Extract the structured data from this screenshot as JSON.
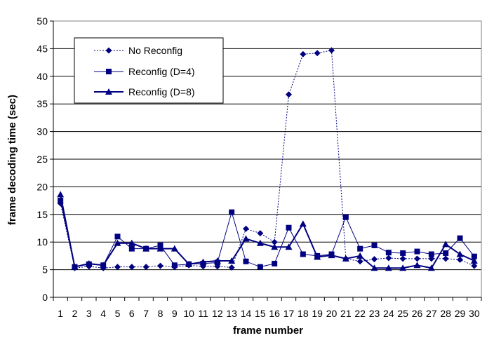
{
  "chart_data": {
    "type": "line",
    "title": "",
    "xlabel": "frame number",
    "ylabel": "frame decoding time (sec)",
    "x": [
      1,
      2,
      3,
      4,
      5,
      6,
      7,
      8,
      9,
      10,
      11,
      12,
      13,
      14,
      15,
      16,
      17,
      18,
      19,
      20,
      21,
      22,
      23,
      24,
      25,
      26,
      27,
      28,
      29,
      30
    ],
    "ylim": [
      0,
      50
    ],
    "yticks": [
      0,
      5,
      10,
      15,
      20,
      25,
      30,
      35,
      40,
      45,
      50
    ],
    "grid": "horizontal",
    "legend_position": "top-left",
    "series": [
      {
        "name": "No Reconfig",
        "style": "dotted",
        "marker": "diamond",
        "color": "#000080",
        "values": [
          17.0,
          5.3,
          5.6,
          5.3,
          5.5,
          5.5,
          5.5,
          5.7,
          5.5,
          5.8,
          5.6,
          5.6,
          5.4,
          12.4,
          11.6,
          10.0,
          36.7,
          44.0,
          44.2,
          44.7,
          7.0,
          6.5,
          6.9,
          7.1,
          7.0,
          7.0,
          7.0,
          7.0,
          6.8,
          5.7
        ]
      },
      {
        "name": "Reconfig (D=4)",
        "style": "solid",
        "marker": "square",
        "color": "#000080",
        "values": [
          17.5,
          5.5,
          6.0,
          5.8,
          11.0,
          8.8,
          8.8,
          9.4,
          5.8,
          6.0,
          6.1,
          6.3,
          15.4,
          6.5,
          5.5,
          6.1,
          12.6,
          7.8,
          7.5,
          7.8,
          14.5,
          8.8,
          9.4,
          8.1,
          8.0,
          8.3,
          7.8,
          8.0,
          10.7,
          7.4
        ]
      },
      {
        "name": "Reconfig (D=8)",
        "style": "solid-bold",
        "marker": "triangle",
        "color": "#000080",
        "values": [
          18.6,
          5.5,
          6.1,
          5.8,
          9.8,
          9.8,
          8.8,
          8.8,
          8.8,
          6.0,
          6.4,
          6.6,
          6.6,
          10.6,
          9.8,
          9.1,
          9.1,
          13.3,
          7.3,
          7.6,
          7.0,
          7.5,
          5.3,
          5.3,
          5.3,
          5.8,
          5.3,
          9.6,
          7.8,
          6.6
        ]
      }
    ]
  }
}
